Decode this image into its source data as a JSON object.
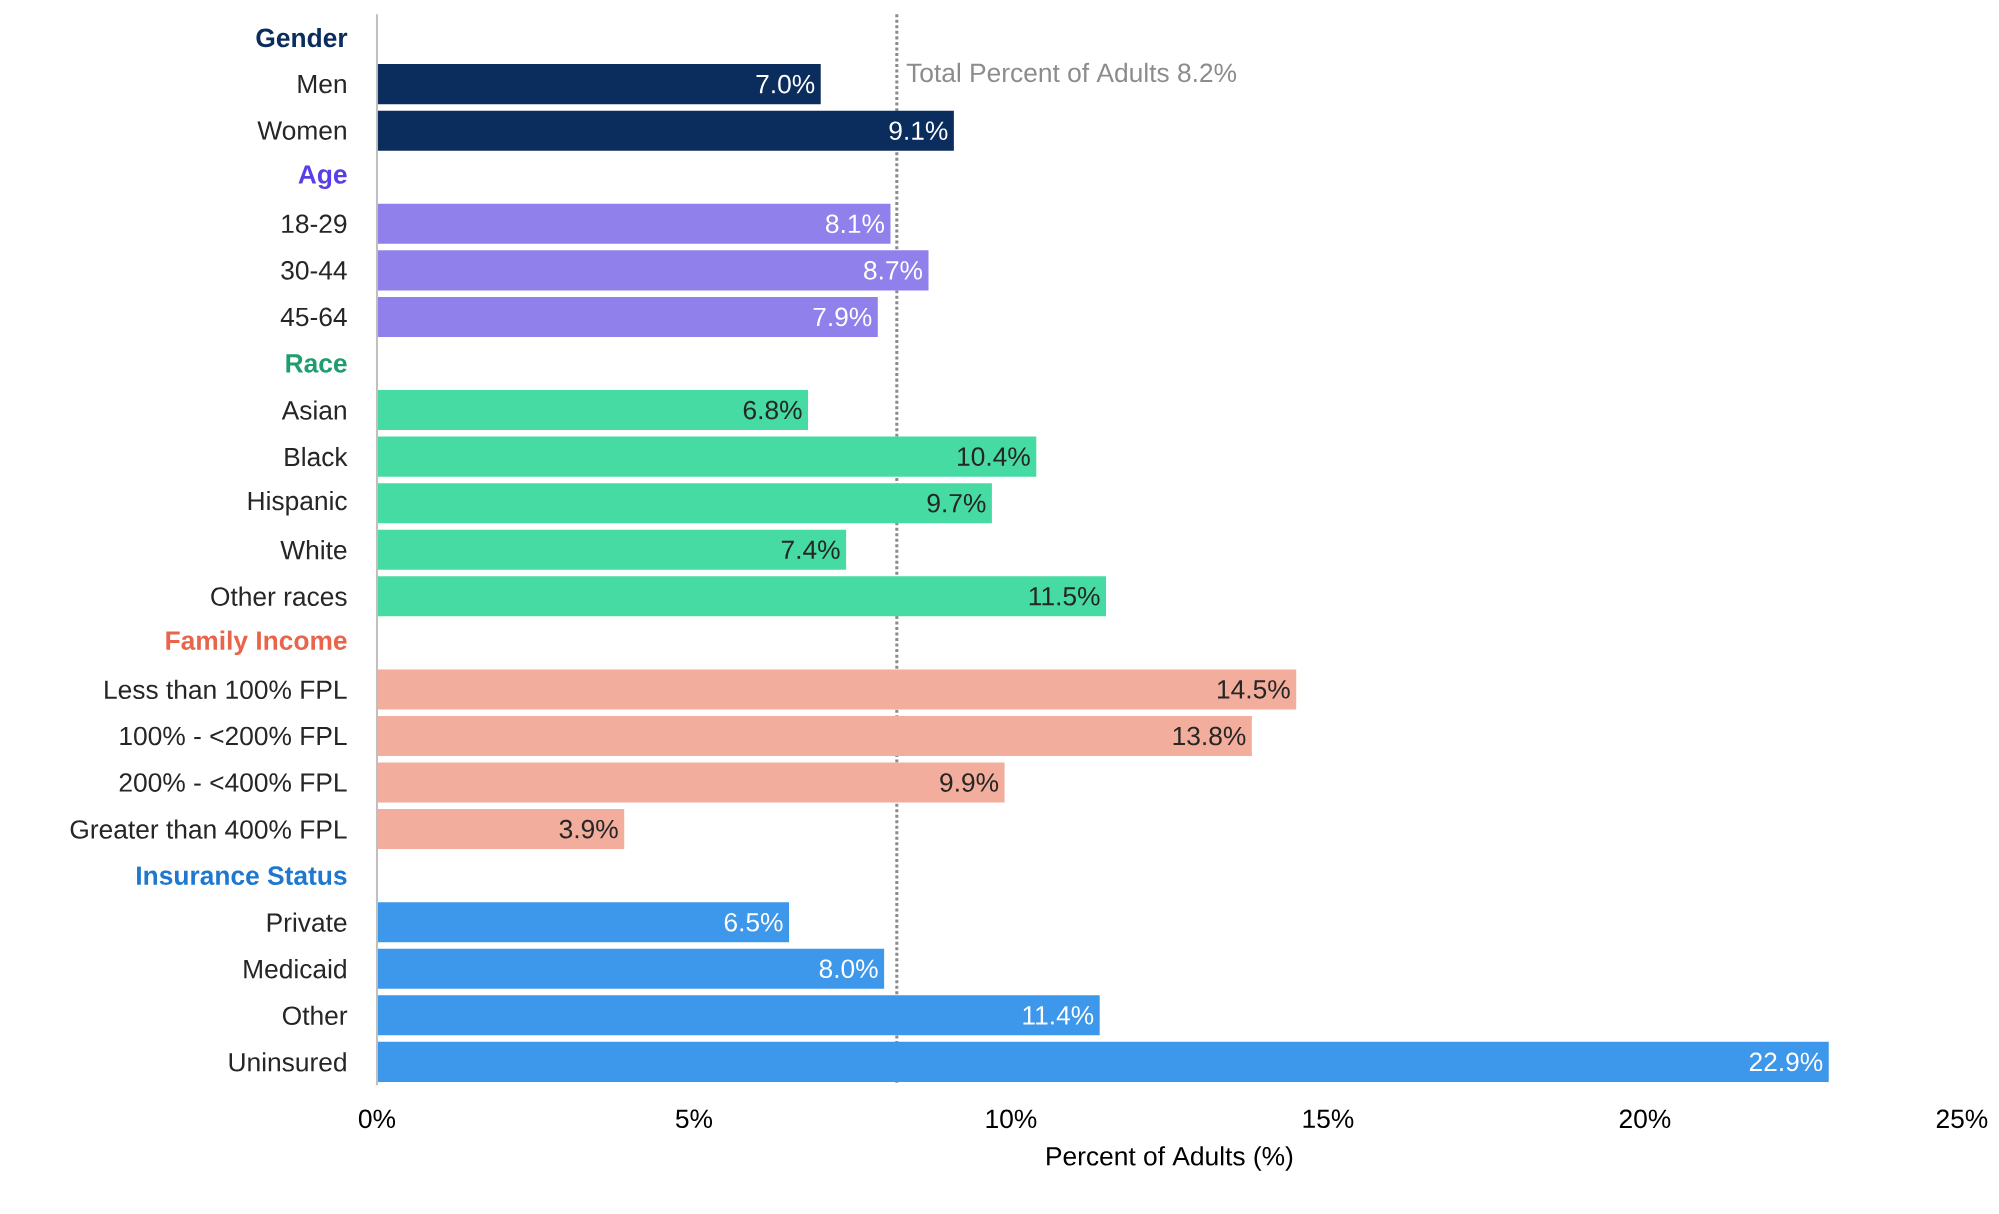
{
  "chart_data": {
    "type": "bar",
    "orientation": "horizontal",
    "categories": [
      "Gender",
      "Men",
      "Women",
      "Age",
      "18-29",
      "30-44",
      "45-64",
      "Race",
      "Asian",
      "Black",
      "Hispanic",
      "White",
      "Other races",
      "Family Income",
      "Less than 100% FPL",
      "100% - <200% FPL",
      "200% - <400% FPL",
      "Greater than 400% FPL",
      "Insurance Status",
      "Private",
      "Medicaid",
      "Other",
      "Uninsured"
    ],
    "values": [
      null,
      7.0,
      9.1,
      null,
      8.1,
      8.7,
      7.9,
      null,
      6.8,
      10.4,
      9.7,
      7.4,
      11.5,
      null,
      14.5,
      13.8,
      9.9,
      3.9,
      null,
      6.5,
      8.0,
      11.4,
      22.9
    ],
    "value_labels": [
      null,
      "7.0%",
      "9.1%",
      null,
      "8.1%",
      "8.7%",
      "7.9%",
      null,
      "6.8%",
      "10.4%",
      "9.7%",
      "7.4%",
      "11.5%",
      null,
      "14.5%",
      "13.8%",
      "9.9%",
      "3.9%",
      null,
      "6.5%",
      "8.0%",
      "11.4%",
      "22.9%"
    ],
    "colors": [
      "#0b2d5e",
      "#0b2d5e",
      "#0b2d5e",
      "#5b3ee6",
      "#8f80ec",
      "#8f80ec",
      "#8f80ec",
      "#1e9e6e",
      "#47dba4",
      "#47dba4",
      "#47dba4",
      "#47dba4",
      "#47dba4",
      "#e8644a",
      "#f2ad9c",
      "#f2ad9c",
      "#f2ad9c",
      "#f2ad9c",
      "#1e78d0",
      "#3d97ea",
      "#3d97ea",
      "#3d97ea",
      "#3d97ea"
    ],
    "xlim": [
      0,
      25
    ],
    "xticks": [
      {
        "value": 0,
        "label": "0%"
      },
      {
        "value": 5,
        "label": "5%"
      },
      {
        "value": 10,
        "label": "10%"
      },
      {
        "value": 15,
        "label": "15%"
      },
      {
        "value": 20,
        "label": "20%"
      },
      {
        "value": 25,
        "label": "25%"
      }
    ],
    "xlabel": "Percent of Adults (%)",
    "ref_lines": [
      {
        "axis": "x",
        "value": 8.2,
        "label": "Total Percent of Adults 8.2%",
        "color": "#8c8c8c",
        "line_style": "dotted"
      }
    ]
  }
}
